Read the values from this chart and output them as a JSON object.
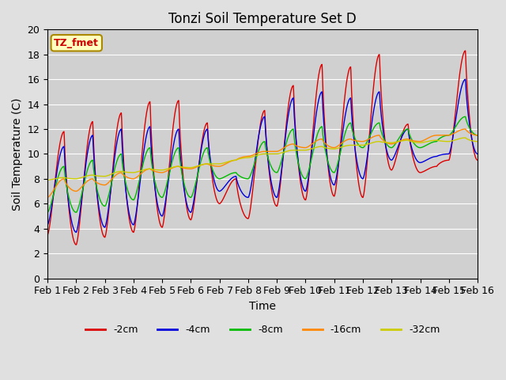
{
  "title": "Tonzi Soil Temperature Set D",
  "xlabel": "Time",
  "ylabel": "Soil Temperature (C)",
  "ylim": [
    0,
    20
  ],
  "fig_bg": "#e0e0e0",
  "plot_bg": "#d0d0d0",
  "annotation_label": "TZ_fmet",
  "xtick_labels": [
    "Feb 1",
    "Feb 2",
    "Feb 3",
    "Feb 4",
    "Feb 5",
    "Feb 6",
    "Feb 7",
    "Feb 8",
    "Feb 9",
    "Feb 10",
    "Feb 11",
    "Feb 12",
    "Feb 13",
    "Feb 14",
    "Feb 15",
    "Feb 16"
  ],
  "series_order": [
    "-2cm",
    "-4cm",
    "-8cm",
    "-16cm",
    "-32cm"
  ],
  "legend_colors": [
    "#dd0000",
    "#0000dd",
    "#00bb00",
    "#ff8800",
    "#cccc00"
  ],
  "legend_labels": [
    "-2cm",
    "-4cm",
    "-8cm",
    "-16cm",
    "-32cm"
  ],
  "series": {
    "-2cm": {
      "color": "#dd0000",
      "peaks": [
        11.8,
        12.6,
        13.3,
        14.2,
        14.3,
        12.5,
        8.0,
        13.5,
        15.5,
        17.2,
        17.0,
        18.0,
        12.4,
        9.0,
        18.3
      ],
      "troughs": [
        3.5,
        2.7,
        3.3,
        3.7,
        4.1,
        4.7,
        6.0,
        4.8,
        5.8,
        6.3,
        6.6,
        6.5,
        8.7,
        8.5,
        9.5
      ]
    },
    "-4cm": {
      "color": "#0000dd",
      "peaks": [
        10.6,
        11.5,
        12.0,
        12.2,
        12.0,
        12.0,
        8.2,
        13.0,
        14.5,
        15.0,
        14.5,
        15.0,
        12.0,
        9.8,
        16.0
      ],
      "troughs": [
        4.3,
        3.7,
        4.1,
        4.3,
        5.0,
        5.3,
        7.0,
        6.5,
        6.5,
        7.0,
        7.5,
        8.0,
        9.5,
        9.3,
        10.0
      ]
    },
    "-8cm": {
      "color": "#00bb00",
      "peaks": [
        9.0,
        9.5,
        10.0,
        10.5,
        10.5,
        10.5,
        8.5,
        11.0,
        12.0,
        12.2,
        12.5,
        12.5,
        12.0,
        11.0,
        13.0
      ],
      "troughs": [
        5.3,
        5.3,
        5.8,
        6.3,
        6.5,
        6.5,
        8.0,
        8.0,
        8.5,
        8.0,
        8.5,
        10.5,
        10.5,
        10.5,
        11.5
      ]
    },
    "-16cm": {
      "color": "#ff8800",
      "peaks": [
        8.0,
        8.0,
        8.5,
        8.8,
        9.0,
        9.2,
        9.5,
        10.2,
        10.8,
        11.2,
        11.2,
        11.5,
        11.2,
        11.5,
        12.0
      ],
      "troughs": [
        6.5,
        7.0,
        7.5,
        8.0,
        8.5,
        8.8,
        9.0,
        9.8,
        10.2,
        10.5,
        10.5,
        11.0,
        10.8,
        11.0,
        11.5
      ]
    },
    "-32cm": {
      "peaks": [
        8.1,
        8.3,
        8.6,
        8.8,
        9.0,
        9.2,
        9.5,
        10.0,
        10.3,
        10.6,
        10.7,
        11.0,
        11.1,
        11.1,
        11.3
      ],
      "troughs": [
        7.9,
        8.0,
        8.2,
        8.5,
        8.7,
        8.9,
        9.2,
        9.7,
        10.0,
        10.3,
        10.4,
        10.7,
        10.9,
        10.9,
        11.0
      ],
      "color": "#cccc00"
    }
  }
}
